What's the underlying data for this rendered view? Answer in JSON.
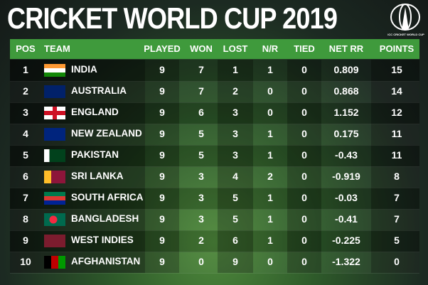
{
  "header": {
    "title": "CRICKET WORLD CUP 2019",
    "logo_text": "ICC CRICKET WORLD CUP"
  },
  "table": {
    "columns": [
      "POS",
      "TEAM",
      "PLAYED",
      "WON",
      "LOST",
      "N/R",
      "TIED",
      "NET RR",
      "POINTS"
    ],
    "rows": [
      [
        "1",
        "INDIA",
        "9",
        "7",
        "1",
        "1",
        "0",
        "0.809",
        "15"
      ],
      [
        "2",
        "AUSTRALIA",
        "9",
        "7",
        "2",
        "0",
        "0",
        "0.868",
        "14"
      ],
      [
        "3",
        "ENGLAND",
        "9",
        "6",
        "3",
        "0",
        "0",
        "1.152",
        "12"
      ],
      [
        "4",
        "NEW ZEALAND",
        "9",
        "5",
        "3",
        "1",
        "0",
        "0.175",
        "11"
      ],
      [
        "5",
        "PAKISTAN",
        "9",
        "5",
        "3",
        "1",
        "0",
        "-0.43",
        "11"
      ],
      [
        "6",
        "SRI LANKA",
        "9",
        "3",
        "4",
        "2",
        "0",
        "-0.919",
        "8"
      ],
      [
        "7",
        "SOUTH AFRICA",
        "9",
        "3",
        "5",
        "1",
        "0",
        "-0.03",
        "7"
      ],
      [
        "8",
        "BANGLADESH",
        "9",
        "3",
        "5",
        "1",
        "0",
        "-0.41",
        "7"
      ],
      [
        "9",
        "WEST INDIES",
        "9",
        "2",
        "6",
        "1",
        "0",
        "-0.225",
        "5"
      ],
      [
        "10",
        "AFGHANISTAN",
        "9",
        "0",
        "9",
        "0",
        "0",
        "-1.322",
        "0"
      ]
    ]
  }
}
